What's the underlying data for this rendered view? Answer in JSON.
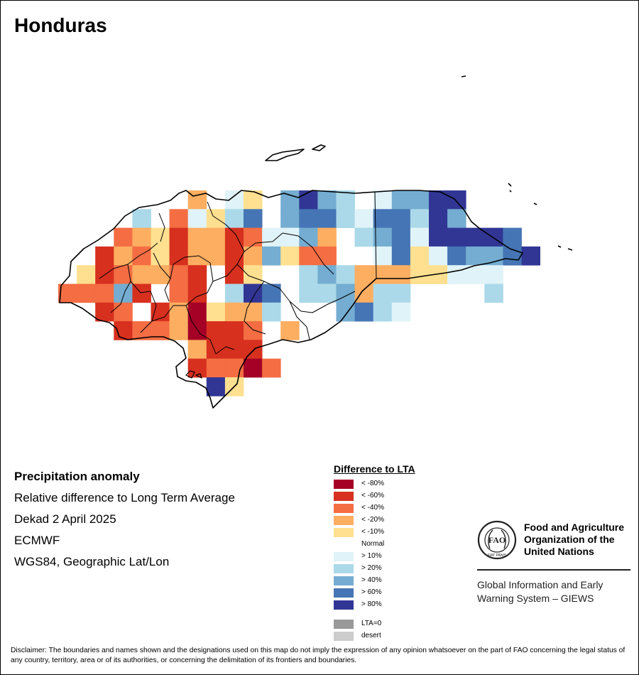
{
  "title": "Honduras",
  "info": {
    "heading": "Precipitation anomaly",
    "subtitle": "Relative difference to Long Term Average",
    "period": "Dekad 2 April 2025",
    "source": "ECMWF",
    "projection": "WGS84, Geographic Lat/Lon"
  },
  "legend": {
    "title": "Difference to LTA",
    "items": [
      {
        "label": "< -80%",
        "color": "#a50026"
      },
      {
        "label": "< -60%",
        "color": "#d7301f"
      },
      {
        "label": "< -40%",
        "color": "#f46d43"
      },
      {
        "label": "< -20%",
        "color": "#fdae61"
      },
      {
        "label": "< -10%",
        "color": "#fee090"
      },
      {
        "label": "Normal",
        "color": "#ffffff"
      },
      {
        "label": "> 10%",
        "color": "#e0f3f8"
      },
      {
        "label": "> 20%",
        "color": "#abd9e9"
      },
      {
        "label": "> 40%",
        "color": "#74add1"
      },
      {
        "label": "> 60%",
        "color": "#4575b4"
      },
      {
        "label": "> 80%",
        "color": "#313695"
      }
    ],
    "extra": [
      {
        "label": "LTA=0",
        "color": "#999999"
      },
      {
        "label": "desert",
        "color": "#cccccc"
      }
    ]
  },
  "fao": {
    "name_line1": "Food and Agriculture",
    "name_line2": "Organization of the",
    "name_line3": "United Nations",
    "logo_letters": "FAO",
    "motto": "FIAT PANIS",
    "giews_line1": "Global Information and Early",
    "giews_line2": "Warning System – GIEWS"
  },
  "disclaimer": "Disclaimer: The boundaries and names shown and the designations used on this map do not imply the expression of any opinion whatsoever on the part of FAO concerning the legal status of any country, territory, area or of its authorities, or concerning the delimitation of its frontiers and boundaries.",
  "map": {
    "grid_rows": [
      {
        "row": 0,
        "cells": [
          [
            7,
            "<-20"
          ],
          [
            9,
            ">10"
          ],
          [
            10,
            "<-10"
          ],
          [
            12,
            ">40"
          ],
          [
            13,
            ">80"
          ],
          [
            14,
            ">40"
          ],
          [
            15,
            ">20"
          ],
          [
            17,
            ">10"
          ],
          [
            18,
            ">40"
          ],
          [
            19,
            ">40"
          ],
          [
            20,
            ">80"
          ],
          [
            21,
            ">80"
          ]
        ]
      },
      {
        "row": 1,
        "cells": [
          [
            4,
            ">20"
          ],
          [
            6,
            "<-40"
          ],
          [
            7,
            ">10"
          ],
          [
            8,
            "<-10"
          ],
          [
            9,
            ">20"
          ],
          [
            10,
            ">60"
          ],
          [
            12,
            ">40"
          ],
          [
            13,
            ">60"
          ],
          [
            14,
            ">60"
          ],
          [
            15,
            ">20"
          ],
          [
            16,
            ">10"
          ],
          [
            17,
            ">60"
          ],
          [
            18,
            ">60"
          ],
          [
            19,
            ">20"
          ],
          [
            20,
            ">80"
          ],
          [
            21,
            ">40"
          ]
        ]
      },
      {
        "row": 2,
        "cells": [
          [
            3,
            "<-40"
          ],
          [
            4,
            "<-20"
          ],
          [
            5,
            "<-10"
          ],
          [
            6,
            "<-60"
          ],
          [
            7,
            "<-20"
          ],
          [
            8,
            "<-20"
          ],
          [
            9,
            "<-60"
          ],
          [
            10,
            "<-40"
          ],
          [
            11,
            ">10"
          ],
          [
            12,
            ">10"
          ],
          [
            13,
            ">40"
          ],
          [
            14,
            "<-20"
          ],
          [
            16,
            ">20"
          ],
          [
            17,
            ">40"
          ],
          [
            18,
            ">60"
          ],
          [
            19,
            ">10"
          ],
          [
            20,
            ">80"
          ],
          [
            21,
            ">80"
          ],
          [
            22,
            ">80"
          ],
          [
            23,
            ">80"
          ],
          [
            24,
            ">60"
          ]
        ]
      },
      {
        "row": 3,
        "cells": [
          [
            2,
            "<-60"
          ],
          [
            3,
            "<-20"
          ],
          [
            4,
            "<-40"
          ],
          [
            5,
            "<-10"
          ],
          [
            6,
            "<-60"
          ],
          [
            7,
            "<-20"
          ],
          [
            8,
            "<-20"
          ],
          [
            9,
            "<-60"
          ],
          [
            10,
            "<-20"
          ],
          [
            11,
            ">40"
          ],
          [
            12,
            "<-10"
          ],
          [
            13,
            "<-40"
          ],
          [
            14,
            "<-40"
          ],
          [
            17,
            ">10"
          ],
          [
            18,
            ">60"
          ],
          [
            19,
            "<-10"
          ],
          [
            20,
            ">10"
          ],
          [
            21,
            ">60"
          ],
          [
            22,
            ">40"
          ],
          [
            23,
            ">40"
          ],
          [
            24,
            ">60"
          ],
          [
            25,
            ">80"
          ]
        ]
      },
      {
        "row": 4,
        "cells": [
          [
            1,
            "<-10"
          ],
          [
            2,
            "<-60"
          ],
          [
            3,
            "<-40"
          ],
          [
            4,
            "<-20"
          ],
          [
            5,
            "<-20"
          ],
          [
            6,
            "<-40"
          ],
          [
            7,
            "<-60"
          ],
          [
            9,
            "<-60"
          ],
          [
            10,
            "<-10"
          ],
          [
            13,
            ">20"
          ],
          [
            14,
            ">40"
          ],
          [
            15,
            ">20"
          ],
          [
            16,
            "<-20"
          ],
          [
            17,
            "<-20"
          ],
          [
            18,
            "<-20"
          ],
          [
            19,
            "<-10"
          ],
          [
            20,
            "<-10"
          ],
          [
            21,
            ">10"
          ],
          [
            22,
            ">10"
          ],
          [
            23,
            ">10"
          ]
        ]
      },
      {
        "row": 5,
        "cells": [
          [
            0,
            "<-40"
          ],
          [
            1,
            "<-40"
          ],
          [
            2,
            "<-40"
          ],
          [
            3,
            ">40"
          ],
          [
            4,
            "<-60"
          ],
          [
            6,
            "<-40"
          ],
          [
            7,
            "<-60"
          ],
          [
            9,
            ">20"
          ],
          [
            10,
            ">80"
          ],
          [
            11,
            ">60"
          ],
          [
            13,
            ">20"
          ],
          [
            14,
            ">20"
          ],
          [
            15,
            ">40"
          ],
          [
            16,
            "<-20"
          ],
          [
            17,
            ">20"
          ],
          [
            18,
            ">20"
          ],
          [
            23,
            ">20"
          ]
        ]
      },
      {
        "row": 6,
        "cells": [
          [
            2,
            "<-60"
          ],
          [
            3,
            "<-40"
          ],
          [
            5,
            "<-60"
          ],
          [
            6,
            "<-20"
          ],
          [
            7,
            "<-80"
          ],
          [
            8,
            "<-10"
          ],
          [
            9,
            "<-20"
          ],
          [
            10,
            "<-20"
          ],
          [
            11,
            ">20"
          ],
          [
            15,
            ">40"
          ],
          [
            16,
            ">60"
          ],
          [
            17,
            ">20"
          ],
          [
            18,
            ">10"
          ]
        ]
      },
      {
        "row": 7,
        "cells": [
          [
            3,
            "<-60"
          ],
          [
            4,
            "<-40"
          ],
          [
            5,
            "<-40"
          ],
          [
            6,
            "<-20"
          ],
          [
            7,
            "<-80"
          ],
          [
            8,
            "<-60"
          ],
          [
            9,
            "<-60"
          ],
          [
            10,
            "<-40"
          ],
          [
            12,
            "<-20"
          ]
        ]
      },
      {
        "row": 8,
        "cells": [
          [
            7,
            "<-20"
          ],
          [
            8,
            "<-60"
          ],
          [
            9,
            "<-60"
          ],
          [
            10,
            "<-60"
          ]
        ]
      },
      {
        "row": 9,
        "cells": [
          [
            7,
            "<-60"
          ],
          [
            8,
            "<-40"
          ],
          [
            9,
            "<-40"
          ],
          [
            10,
            "<-80"
          ],
          [
            11,
            "<-40"
          ]
        ]
      },
      {
        "row": 10,
        "cells": [
          [
            8,
            ">80"
          ],
          [
            9,
            "<-10"
          ]
        ]
      }
    ]
  }
}
